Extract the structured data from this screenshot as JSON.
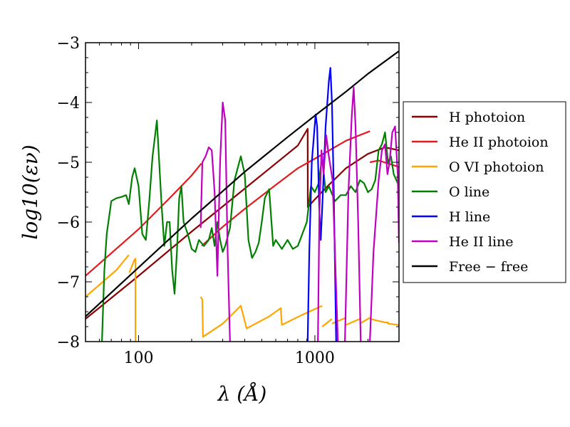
{
  "chart_data": {
    "type": "line",
    "title": "",
    "xlabel": "λ (Å)",
    "ylabel": "log10(εν)",
    "xscale": "log",
    "xlim": [
      50,
      3000
    ],
    "ylim": [
      -8,
      -3
    ],
    "xticks": [
      {
        "value": 100,
        "label": "100"
      },
      {
        "value": 1000,
        "label": "1000"
      }
    ],
    "yticks": [
      {
        "value": -3,
        "label": "−3"
      },
      {
        "value": -4,
        "label": "−4"
      },
      {
        "value": -5,
        "label": "−5"
      },
      {
        "value": -6,
        "label": "−6"
      },
      {
        "value": -7,
        "label": "−7"
      },
      {
        "value": -8,
        "label": "−8"
      }
    ],
    "legend": {
      "position": "right",
      "entries": [
        "H photoion",
        "He II photoion",
        "O VI photoion",
        "O line",
        "H line",
        "He II line",
        "Free − free"
      ]
    },
    "series": [
      {
        "name": "H photoion",
        "color": "#8b0000",
        "points": [
          [
            50,
            -7.62
          ],
          [
            100,
            -6.9
          ],
          [
            200,
            -6.16
          ],
          [
            400,
            -5.44
          ],
          [
            600,
            -5.02
          ],
          [
            800,
            -4.72
          ],
          [
            910,
            -4.44
          ],
          [
            912,
            -5.75
          ],
          [
            1000,
            -5.62
          ],
          [
            1200,
            -5.38
          ],
          [
            1500,
            -5.1
          ],
          [
            2000,
            -4.86
          ],
          [
            2500,
            -4.75
          ],
          [
            3000,
            -4.8
          ]
        ]
      },
      {
        "name": "He II photoion",
        "color": "#e31a1c",
        "segments": [
          [
            [
              50,
              -6.9
            ],
            [
              100,
              -6.12
            ],
            [
              150,
              -5.6
            ],
            [
              200,
              -5.22
            ],
            [
              227,
              -5.02
            ]
          ],
          [
            [
              228,
              -6.4
            ],
            [
              300,
              -6.08
            ],
            [
              400,
              -5.78
            ],
            [
              600,
              -5.38
            ],
            [
              800,
              -5.1
            ],
            [
              1000,
              -4.94
            ],
            [
              1500,
              -4.64
            ],
            [
              2050,
              -4.48
            ]
          ],
          [
            [
              2052,
              -5.0
            ],
            [
              2300,
              -4.97
            ],
            [
              2600,
              -5.02
            ],
            [
              3000,
              -5.08
            ]
          ]
        ]
      },
      {
        "name": "O VI photoion",
        "color": "#ffa500",
        "segments": [
          [
            [
              50,
              -7.25
            ],
            [
              60,
              -7.05
            ],
            [
              75,
              -6.8
            ],
            [
              88,
              -6.55
            ]
          ],
          [
            [
              88.5,
              -6.85
            ],
            [
              95,
              -6.62
            ]
          ],
          [
            [
              96,
              -8.0
            ]
          ],
          [
            [
              225,
              -7.25
            ],
            [
              230,
              -7.3
            ],
            [
              232,
              -7.92
            ],
            [
              300,
              -7.7
            ],
            [
              380,
              -7.4
            ],
            [
              410,
              -7.78
            ],
            [
              550,
              -7.58
            ],
            [
              640,
              -7.44
            ],
            [
              650,
              -7.72
            ],
            [
              850,
              -7.55
            ],
            [
              1100,
              -7.4
            ]
          ],
          [
            [
              1100,
              -7.75
            ],
            [
              1250,
              -7.62
            ]
          ],
          [
            [
              1250,
              -7.7
            ],
            [
              1500,
              -7.6
            ]
          ],
          [
            [
              1500,
              -7.72
            ],
            [
              1800,
              -7.62
            ]
          ],
          [
            [
              1800,
              -7.7
            ],
            [
              2050,
              -7.6
            ]
          ],
          [
            [
              2050,
              -7.62
            ],
            [
              2500,
              -7.68
            ],
            [
              2600,
              -7.68
            ],
            [
              2600,
              -7.7
            ],
            [
              3000,
              -7.72
            ]
          ]
        ]
      },
      {
        "name": "O line",
        "color": "#008000",
        "points": [
          [
            62,
            -8.0
          ],
          [
            64,
            -6.8
          ],
          [
            66,
            -6.2
          ],
          [
            70,
            -5.65
          ],
          [
            75,
            -5.6
          ],
          [
            80,
            -5.58
          ],
          [
            85,
            -5.55
          ],
          [
            88,
            -5.7
          ],
          [
            92,
            -5.25
          ],
          [
            95,
            -5.1
          ],
          [
            100,
            -5.4
          ],
          [
            105,
            -6.2
          ],
          [
            110,
            -6.3
          ],
          [
            115,
            -5.65
          ],
          [
            120,
            -4.9
          ],
          [
            127,
            -4.3
          ],
          [
            135,
            -5.7
          ],
          [
            140,
            -6.4
          ],
          [
            145,
            -6.0
          ],
          [
            150,
            -6.0
          ],
          [
            155,
            -6.8
          ],
          [
            160,
            -7.2
          ],
          [
            165,
            -6.5
          ],
          [
            170,
            -5.6
          ],
          [
            175,
            -5.4
          ],
          [
            180,
            -6.0
          ],
          [
            190,
            -6.2
          ],
          [
            200,
            -6.45
          ],
          [
            210,
            -6.5
          ],
          [
            220,
            -6.3
          ],
          [
            235,
            -6.4
          ],
          [
            250,
            -6.3
          ],
          [
            260,
            -6.1
          ],
          [
            270,
            -6.4
          ],
          [
            280,
            -6.0
          ],
          [
            290,
            -6.3
          ],
          [
            300,
            -6.5
          ],
          [
            310,
            -6.4
          ],
          [
            330,
            -6.1
          ],
          [
            350,
            -5.3
          ],
          [
            380,
            -4.9
          ],
          [
            400,
            -5.2
          ],
          [
            420,
            -6.3
          ],
          [
            440,
            -6.6
          ],
          [
            460,
            -6.5
          ],
          [
            480,
            -6.35
          ],
          [
            500,
            -6.0
          ],
          [
            520,
            -5.6
          ],
          [
            550,
            -5.45
          ],
          [
            580,
            -6.4
          ],
          [
            600,
            -6.3
          ],
          [
            650,
            -6.45
          ],
          [
            700,
            -6.3
          ],
          [
            750,
            -6.45
          ],
          [
            800,
            -6.4
          ],
          [
            900,
            -6.0
          ],
          [
            950,
            -5.4
          ],
          [
            1000,
            -5.5
          ],
          [
            1050,
            -5.35
          ],
          [
            1100,
            -4.9
          ],
          [
            1150,
            -5.5
          ],
          [
            1200,
            -5.4
          ],
          [
            1300,
            -5.65
          ],
          [
            1400,
            -5.55
          ],
          [
            1500,
            -5.55
          ],
          [
            1600,
            -5.4
          ],
          [
            1700,
            -5.5
          ],
          [
            1800,
            -5.3
          ],
          [
            1900,
            -5.35
          ],
          [
            2000,
            -5.5
          ],
          [
            2100,
            -5.45
          ],
          [
            2200,
            -5.3
          ],
          [
            2300,
            -4.8
          ],
          [
            2400,
            -4.7
          ],
          [
            2500,
            -4.5
          ],
          [
            2600,
            -5.0
          ],
          [
            2700,
            -4.9
          ],
          [
            2800,
            -5.2
          ],
          [
            3000,
            -5.4
          ]
        ]
      },
      {
        "name": "H line",
        "color": "#0000ff",
        "points": [
          [
            910,
            -8.0
          ],
          [
            930,
            -6.5
          ],
          [
            960,
            -5.0
          ],
          [
            1010,
            -4.2
          ],
          [
            1030,
            -4.4
          ],
          [
            1060,
            -5.8
          ],
          [
            1080,
            -6.3
          ],
          [
            1110,
            -5.5
          ],
          [
            1150,
            -4.4
          ],
          [
            1200,
            -3.65
          ],
          [
            1225,
            -3.42
          ],
          [
            1250,
            -4.0
          ],
          [
            1280,
            -5.5
          ],
          [
            1320,
            -8.0
          ]
        ]
      },
      {
        "name": "He II line",
        "color": "#c000c0",
        "segments": [
          [
            [
              225,
              -6.1
            ],
            [
              230,
              -5.0
            ],
            [
              240,
              -4.9
            ],
            [
              250,
              -4.75
            ],
            [
              260,
              -4.8
            ],
            [
              270,
              -5.5
            ],
            [
              280,
              -6.9
            ],
            [
              290,
              -5.0
            ],
            [
              300,
              -4.0
            ],
            [
              310,
              -4.3
            ],
            [
              320,
              -6.5
            ],
            [
              330,
              -8.0
            ]
          ],
          [
            [
              1040,
              -8.0
            ],
            [
              1060,
              -5.9
            ],
            [
              1090,
              -4.8
            ],
            [
              1120,
              -5.2
            ],
            [
              1160,
              -4.55
            ],
            [
              1200,
              -4.9
            ],
            [
              1260,
              -5.3
            ],
            [
              1300,
              -6.5
            ],
            [
              1350,
              -8.0
            ]
          ],
          [
            [
              1480,
              -8.0
            ],
            [
              1550,
              -5.5
            ],
            [
              1620,
              -4.2
            ],
            [
              1660,
              -3.75
            ],
            [
              1700,
              -4.4
            ],
            [
              1760,
              -6.0
            ],
            [
              1820,
              -8.0
            ]
          ],
          [
            [
              2050,
              -8.0
            ],
            [
              2150,
              -6.5
            ],
            [
              2300,
              -5.3
            ],
            [
              2400,
              -4.8
            ],
            [
              2500,
              -4.7
            ],
            [
              2580,
              -5.2
            ],
            [
              2650,
              -5.0
            ],
            [
              2750,
              -4.5
            ],
            [
              2850,
              -4.4
            ],
            [
              2950,
              -5.2
            ],
            [
              3000,
              -6.35
            ]
          ]
        ]
      },
      {
        "name": "Free − free",
        "color": "#000000",
        "points": [
          [
            50,
            -7.58
          ],
          [
            100,
            -6.76
          ],
          [
            200,
            -5.94
          ],
          [
            400,
            -5.16
          ],
          [
            700,
            -4.58
          ],
          [
            1000,
            -4.22
          ],
          [
            1500,
            -3.82
          ],
          [
            2000,
            -3.52
          ],
          [
            3000,
            -3.14
          ]
        ]
      }
    ]
  }
}
